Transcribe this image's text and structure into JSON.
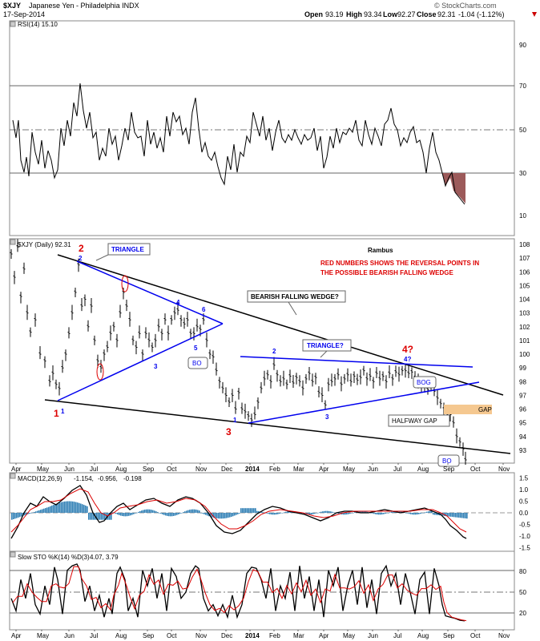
{
  "header": {
    "symbol": "$XJY",
    "name": "Japanese Yen - Philadelphia INDX",
    "date": "17-Sep-2014",
    "open_label": "Open",
    "open": "93.19",
    "high_label": "High",
    "high": "93.34",
    "low_label": "Low",
    "low": "92.27",
    "close_label": "Close",
    "close": "92.31",
    "change": "-1.04 (-1.12%)",
    "credit": "© StockCharts.com"
  },
  "colors": {
    "price": "#000000",
    "trendline_blue": "#0000ee",
    "reversal_red": "#dd0000",
    "macd_hist": "#2f7fb5",
    "signal_red": "#dd0000",
    "rsi_oversold_fill": "#9c5a5a",
    "gap_box": "#f5c890"
  },
  "x_axis": {
    "top_months": [
      "Apr",
      "May",
      "Jun",
      "Jul",
      "Aug",
      "Sep",
      "Oct",
      "Nov",
      "Dec",
      "2014",
      "Feb",
      "Mar",
      "Apr",
      "May",
      "Jun",
      "Jul",
      "Aug",
      "Sep",
      "Oct",
      "Nov"
    ],
    "bottom_months": [
      "Apr",
      "May",
      "Jun",
      "Jul",
      "Aug",
      "Sep",
      "Oct",
      "Nov",
      "Dec",
      "2014",
      "Feb",
      "Mar",
      "Apr",
      "May",
      "Jun",
      "Jul",
      "Aug",
      "Sep",
      "Oct",
      "Nov"
    ]
  },
  "panels": {
    "rsi": {
      "label": "RSI(14) 15.10",
      "ticks": [
        "90",
        "70",
        "50",
        "30",
        "10"
      ]
    },
    "price": {
      "label": "$XJY (Daily) 92.31",
      "ticks": [
        "108",
        "107",
        "106",
        "105",
        "104",
        "103",
        "102",
        "101",
        "100",
        "99",
        "98",
        "97",
        "96",
        "95",
        "94",
        "93"
      ]
    },
    "macd": {
      "label_a": "MACD(12,26,9)",
      "label_b": "-1.154,",
      "label_c": "-0.956,",
      "label_d": "-0.198",
      "ticks": [
        "1.5",
        "1.0",
        "0.5",
        "0.0",
        "-0.5",
        "-1.0",
        "-1.5"
      ]
    },
    "sto": {
      "label_a": "Slow STO %K(14) %D(3)",
      "label_b": "4.07,",
      "label_c": "3.79",
      "ticks": [
        "80",
        "50",
        "20"
      ]
    }
  },
  "annotations": {
    "author": "Rambus",
    "note_line1": "RED NUMBERS SHOWS THE REVERSAL POINTS IN",
    "note_line2": "THE POSSIBLE BEARISH FALLING WEDGE",
    "triangle_box": "TRIANGLE",
    "wedge_box": "BEARISH FALLING WEDGE?",
    "triangle2_box": "TRIANGLE?",
    "bo1": "BO",
    "bog": "BOG",
    "halfway": "HALFWAY GAP",
    "gap": "GAP",
    "bo2": "BO",
    "red1": "1",
    "red2": "2",
    "red3": "3",
    "red4": "4?",
    "b1": "1",
    "b2": "2",
    "b3": "3",
    "b4": "4",
    "b5": "5",
    "b6": "6",
    "c1": "1",
    "c2": "2",
    "c3": "3",
    "c4": "4?"
  },
  "chart_data": [
    {
      "type": "line",
      "title": "RSI(14) 15.10",
      "x": [
        "Apr-13",
        "Jun-13",
        "Aug-13",
        "Oct-13",
        "Dec-13",
        "Feb-14",
        "Apr-14",
        "Jun-14",
        "Jul-14",
        "Aug-14",
        "Sep-14"
      ],
      "series": [
        {
          "values": [
            55,
            70,
            38,
            66,
            28,
            64,
            40,
            62,
            40,
            55,
            15
          ]
        }
      ],
      "ylim": [
        0,
        100
      ]
    },
    {
      "type": "line",
      "title": "$XJY (Daily) 92.31",
      "x": [
        "Apr-13",
        "May-13",
        "Jun-13",
        "Jul-13",
        "Aug-13",
        "Sep-13",
        "Oct-13",
        "Nov-13",
        "Dec-13",
        "Jan-14",
        "Feb-14",
        "Mar-14",
        "Apr-14",
        "May-14",
        "Jun-14",
        "Jul-14",
        "Aug-14",
        "Sep-14"
      ],
      "series": [
        {
          "values": [
            107.5,
            97.5,
            105.0,
            99.0,
            103.5,
            100.5,
            103.0,
            100.5,
            96.0,
            95.0,
            98.0,
            97.5,
            98.0,
            98.5,
            98.0,
            98.5,
            96.5,
            92.3
          ]
        }
      ],
      "ylim": [
        92,
        108
      ]
    },
    {
      "type": "line",
      "title": "MACD(12,26,9)",
      "x": [
        "Apr-13",
        "Jun-13",
        "Aug-13",
        "Oct-13",
        "Dec-13",
        "Feb-14",
        "Apr-14",
        "Jun-14",
        "Aug-14",
        "Sep-14"
      ],
      "series": [
        {
          "name": "MACD",
          "values": [
            0.5,
            1.5,
            0.3,
            0.8,
            -1.3,
            0.3,
            0.0,
            0.2,
            -0.2,
            -1.154
          ]
        },
        {
          "name": "Signal",
          "values": [
            0.3,
            1.1,
            0.4,
            0.6,
            -0.9,
            0.1,
            0.0,
            0.1,
            0.0,
            -0.956
          ]
        }
      ],
      "ylim": [
        -1.5,
        1.5
      ]
    },
    {
      "type": "line",
      "title": "Slow STO %K(14) %D(3)",
      "x": [
        "Apr-13",
        "Jun-13",
        "Aug-13",
        "Oct-13",
        "Dec-13",
        "Feb-14",
        "Apr-14",
        "Jun-14",
        "Aug-14",
        "Sep-14"
      ],
      "series": [
        {
          "name": "%K",
          "values": [
            70,
            90,
            15,
            85,
            10,
            90,
            20,
            85,
            60,
            4.07
          ]
        },
        {
          "name": "%D",
          "values": [
            65,
            85,
            20,
            80,
            15,
            85,
            25,
            80,
            55,
            3.79
          ]
        }
      ],
      "ylim": [
        0,
        100
      ]
    }
  ]
}
